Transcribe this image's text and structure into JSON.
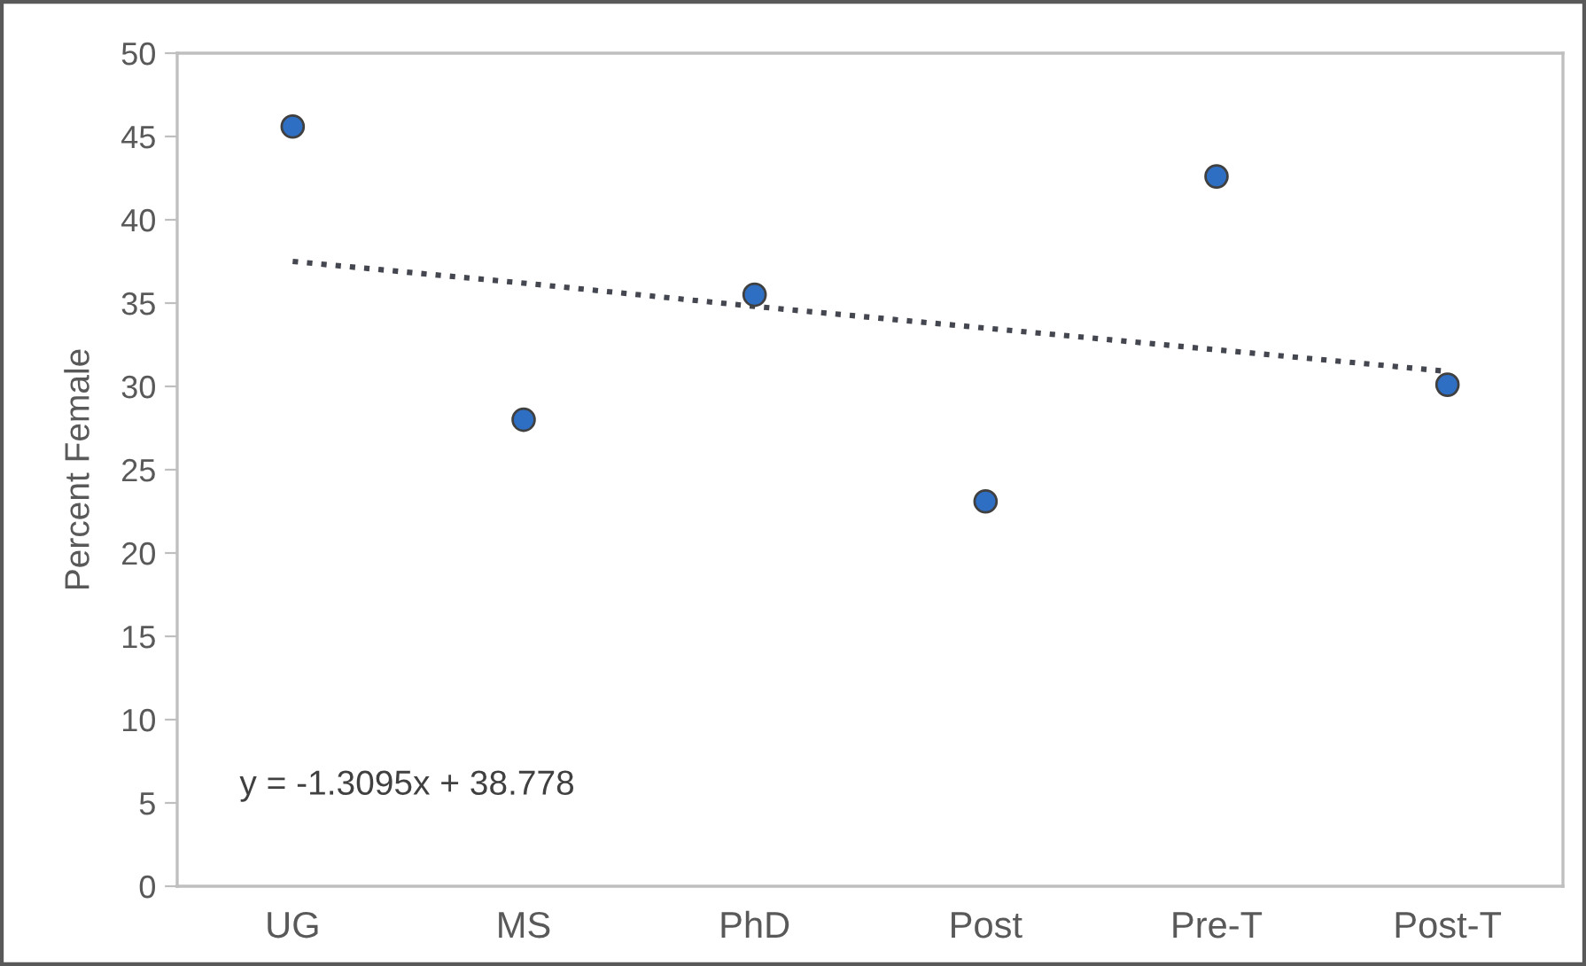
{
  "chart_data": {
    "type": "scatter",
    "ylabel": "Percent Female",
    "categories": [
      "UG",
      "MS",
      "PhD",
      "Post",
      "Pre-T",
      "Post-T"
    ],
    "series": [
      {
        "color": "#2e6fc4",
        "marker": "circle",
        "values": [
          45.6,
          28.0,
          35.5,
          23.1,
          42.6,
          30.1
        ]
      },
      {
        "type": "line",
        "color": "#44474f",
        "marker": "none",
        "line_style": "dotted",
        "values": [
          37.5,
          36.2,
          34.8,
          33.5,
          32.2,
          30.9
        ]
      }
    ],
    "ylim": [
      0,
      50
    ],
    "yticks": [
      0,
      5,
      10,
      15,
      20,
      25,
      30,
      35,
      40,
      45,
      50
    ],
    "grid": false,
    "legend": false,
    "annotations": [
      "y = -1.3095x + 38.778"
    ]
  }
}
